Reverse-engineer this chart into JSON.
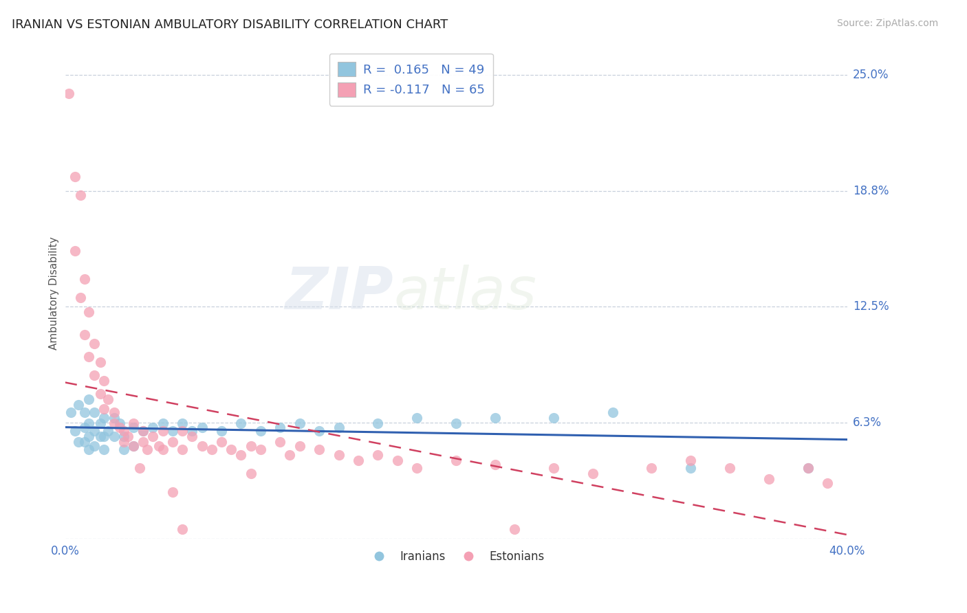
{
  "title": "IRANIAN VS ESTONIAN AMBULATORY DISABILITY CORRELATION CHART",
  "source": "Source: ZipAtlas.com",
  "ylabel": "Ambulatory Disability",
  "xlim": [
    0.0,
    0.4
  ],
  "ylim": [
    0.0,
    0.265
  ],
  "yticks": [
    0.0,
    0.0625,
    0.125,
    0.1875,
    0.25
  ],
  "ytick_labels": [
    "",
    "6.3%",
    "12.5%",
    "18.8%",
    "25.0%"
  ],
  "xtick_labels": [
    "0.0%",
    "40.0%"
  ],
  "watermark_zip": "ZIP",
  "watermark_atlas": "atlas",
  "iranian_color": "#92c5de",
  "estonian_color": "#f4a0b4",
  "iranian_line_color": "#3060b0",
  "estonian_line_color": "#d04060",
  "background_color": "#ffffff",
  "grid_color": "#c8d0dc",
  "iranians": [
    [
      0.003,
      0.068
    ],
    [
      0.005,
      0.058
    ],
    [
      0.007,
      0.072
    ],
    [
      0.007,
      0.052
    ],
    [
      0.01,
      0.068
    ],
    [
      0.01,
      0.06
    ],
    [
      0.01,
      0.052
    ],
    [
      0.012,
      0.075
    ],
    [
      0.012,
      0.062
    ],
    [
      0.012,
      0.055
    ],
    [
      0.012,
      0.048
    ],
    [
      0.015,
      0.068
    ],
    [
      0.015,
      0.058
    ],
    [
      0.015,
      0.05
    ],
    [
      0.018,
      0.062
    ],
    [
      0.018,
      0.055
    ],
    [
      0.02,
      0.065
    ],
    [
      0.02,
      0.055
    ],
    [
      0.02,
      0.048
    ],
    [
      0.022,
      0.058
    ],
    [
      0.025,
      0.065
    ],
    [
      0.025,
      0.055
    ],
    [
      0.028,
      0.062
    ],
    [
      0.03,
      0.055
    ],
    [
      0.03,
      0.048
    ],
    [
      0.035,
      0.06
    ],
    [
      0.035,
      0.05
    ],
    [
      0.04,
      0.058
    ],
    [
      0.045,
      0.06
    ],
    [
      0.05,
      0.062
    ],
    [
      0.055,
      0.058
    ],
    [
      0.06,
      0.062
    ],
    [
      0.065,
      0.058
    ],
    [
      0.07,
      0.06
    ],
    [
      0.08,
      0.058
    ],
    [
      0.09,
      0.062
    ],
    [
      0.1,
      0.058
    ],
    [
      0.11,
      0.06
    ],
    [
      0.12,
      0.062
    ],
    [
      0.13,
      0.058
    ],
    [
      0.14,
      0.06
    ],
    [
      0.16,
      0.062
    ],
    [
      0.18,
      0.065
    ],
    [
      0.2,
      0.062
    ],
    [
      0.22,
      0.065
    ],
    [
      0.25,
      0.065
    ],
    [
      0.28,
      0.068
    ],
    [
      0.32,
      0.038
    ],
    [
      0.38,
      0.038
    ]
  ],
  "estonians": [
    [
      0.002,
      0.24
    ],
    [
      0.005,
      0.195
    ],
    [
      0.008,
      0.185
    ],
    [
      0.005,
      0.155
    ],
    [
      0.01,
      0.14
    ],
    [
      0.008,
      0.13
    ],
    [
      0.012,
      0.122
    ],
    [
      0.01,
      0.11
    ],
    [
      0.015,
      0.105
    ],
    [
      0.012,
      0.098
    ],
    [
      0.018,
      0.095
    ],
    [
      0.015,
      0.088
    ],
    [
      0.02,
      0.085
    ],
    [
      0.018,
      0.078
    ],
    [
      0.022,
      0.075
    ],
    [
      0.02,
      0.07
    ],
    [
      0.025,
      0.068
    ],
    [
      0.025,
      0.062
    ],
    [
      0.028,
      0.06
    ],
    [
      0.03,
      0.058
    ],
    [
      0.032,
      0.055
    ],
    [
      0.03,
      0.052
    ],
    [
      0.035,
      0.05
    ],
    [
      0.035,
      0.062
    ],
    [
      0.04,
      0.058
    ],
    [
      0.04,
      0.052
    ],
    [
      0.042,
      0.048
    ],
    [
      0.045,
      0.055
    ],
    [
      0.048,
      0.05
    ],
    [
      0.05,
      0.058
    ],
    [
      0.05,
      0.048
    ],
    [
      0.055,
      0.052
    ],
    [
      0.06,
      0.058
    ],
    [
      0.06,
      0.048
    ],
    [
      0.065,
      0.055
    ],
    [
      0.07,
      0.05
    ],
    [
      0.075,
      0.048
    ],
    [
      0.08,
      0.052
    ],
    [
      0.085,
      0.048
    ],
    [
      0.09,
      0.045
    ],
    [
      0.095,
      0.05
    ],
    [
      0.1,
      0.048
    ],
    [
      0.11,
      0.052
    ],
    [
      0.115,
      0.045
    ],
    [
      0.12,
      0.05
    ],
    [
      0.13,
      0.048
    ],
    [
      0.14,
      0.045
    ],
    [
      0.15,
      0.042
    ],
    [
      0.16,
      0.045
    ],
    [
      0.17,
      0.042
    ],
    [
      0.18,
      0.038
    ],
    [
      0.2,
      0.042
    ],
    [
      0.22,
      0.04
    ],
    [
      0.25,
      0.038
    ],
    [
      0.27,
      0.035
    ],
    [
      0.3,
      0.038
    ],
    [
      0.32,
      0.042
    ],
    [
      0.34,
      0.038
    ],
    [
      0.36,
      0.032
    ],
    [
      0.38,
      0.038
    ],
    [
      0.39,
      0.03
    ],
    [
      0.06,
      0.005
    ],
    [
      0.23,
      0.005
    ],
    [
      0.038,
      0.038
    ],
    [
      0.055,
      0.025
    ],
    [
      0.095,
      0.035
    ]
  ]
}
